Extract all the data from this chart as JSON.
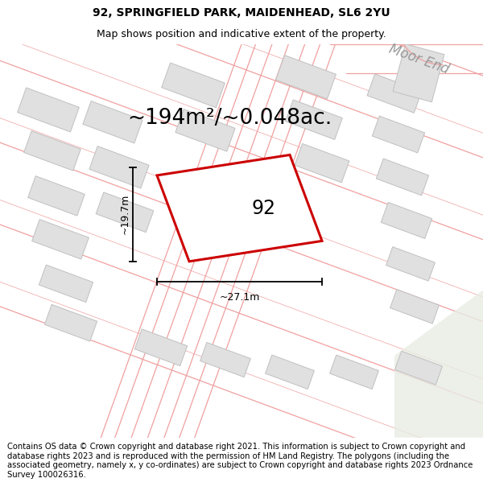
{
  "title_line1": "92, SPRINGFIELD PARK, MAIDENHEAD, SL6 2YU",
  "title_line2": "Map shows position and indicative extent of the property.",
  "area_text": "~194m²/~0.048ac.",
  "width_label": "~27.1m",
  "height_label": "~19.7m",
  "number_label": "92",
  "road_label": "Moor End",
  "copyright_text": "Contains OS data © Crown copyright and database right 2021. This information is subject to Crown copyright and database rights 2023 and is reproduced with the permission of HM Land Registry. The polygons (including the associated geometry, namely x, y co-ordinates) are subject to Crown copyright and database rights 2023 Ordnance Survey 100026316.",
  "bg_color": "#ffffff",
  "map_bg": "#ffffff",
  "building_fill": "#e0e0e0",
  "building_edge": "#c0c0c0",
  "road_color": "#f0a0a0",
  "highlight_color": "#cc0000",
  "highlight_fill": "#ffffff",
  "dim_line_color": "#000000",
  "green_fill": "#e8ede0",
  "title_fontsize": 10,
  "subtitle_fontsize": 9,
  "area_fontsize": 19,
  "label_fontsize": 9,
  "copyright_fontsize": 7.2,
  "road_label_fontsize": 12,
  "number_fontsize": 17
}
